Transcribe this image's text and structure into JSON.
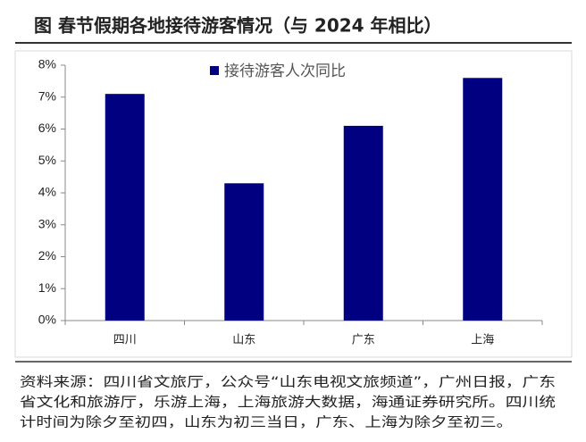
{
  "chart_data": {
    "type": "bar",
    "title": "图  春节假期各地接待游客情况（与 2024 年相比）",
    "categories": [
      "四川",
      "山东",
      "广东",
      "上海"
    ],
    "series": [
      {
        "name": "接待游客人次同比",
        "color": "#000080",
        "values": [
          7.1,
          4.3,
          6.1,
          7.6
        ]
      }
    ],
    "ylim": [
      0,
      8
    ],
    "yticks": [
      {
        "value": 0,
        "label": "0%"
      },
      {
        "value": 1,
        "label": "1%"
      },
      {
        "value": 2,
        "label": "2%"
      },
      {
        "value": 3,
        "label": "3%"
      },
      {
        "value": 4,
        "label": "4%"
      },
      {
        "value": 5,
        "label": "5%"
      },
      {
        "value": 6,
        "label": "6%"
      },
      {
        "value": 7,
        "label": "7%"
      },
      {
        "value": 8,
        "label": "8%"
      }
    ],
    "grid": false,
    "legend": "top",
    "source": [
      "资料来源：四川省文旅厅，公众号“山东电视文旅频道”，广州日报，广东",
      "省文化和旅游厅，乐游上海，上海旅游大数据，海通证券研究所。四川统",
      "计时间为除夕至初四，山东为初三当日，广东、上海为除夕至初三。"
    ]
  }
}
